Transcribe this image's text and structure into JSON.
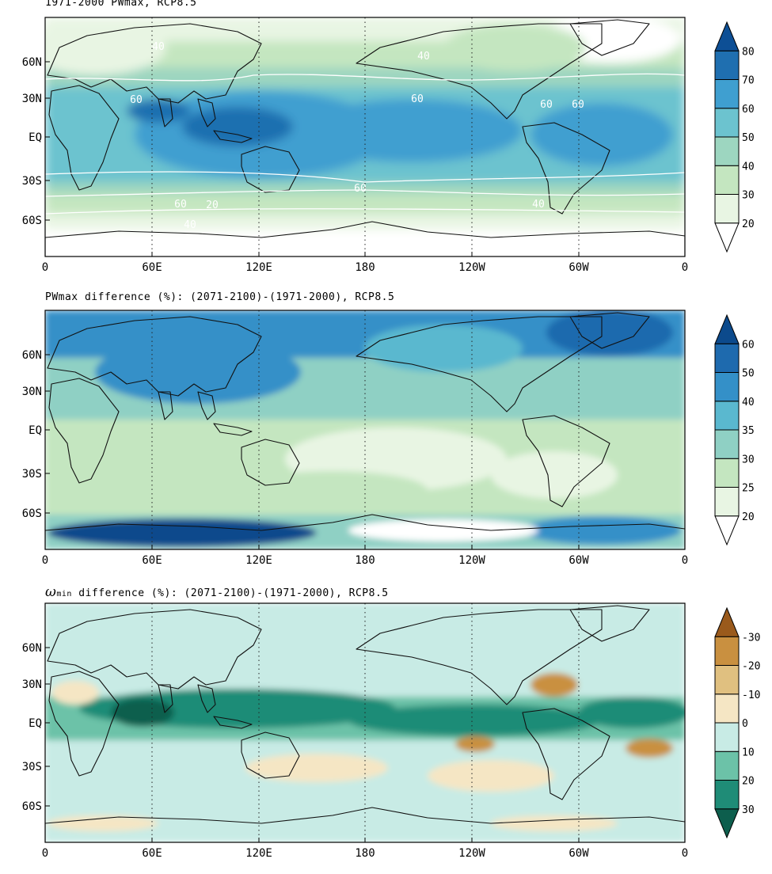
{
  "panels": [
    {
      "title": "1971-2000 PWmax, RCP8.5",
      "colorbar": {
        "levels": [
          "20",
          "30",
          "40",
          "50",
          "60",
          "70",
          "80"
        ],
        "colors": [
          "#ffffff",
          "#e8f5e3",
          "#c4e6c0",
          "#9dd6c0",
          "#6cc3cf",
          "#3f9fd0",
          "#1f6fb0",
          "#0d4f95"
        ]
      },
      "contour_labels": [
        "40",
        "40",
        "60",
        "60",
        "60",
        "60",
        "60",
        "60",
        "40",
        "40",
        "20"
      ]
    },
    {
      "title": "PWmax difference (%): (2071-2100)-(1971-2000), RCP8.5",
      "colorbar": {
        "levels": [
          "20",
          "25",
          "30",
          "35",
          "40",
          "50",
          "60"
        ],
        "colors": [
          "#ffffff",
          "#e8f5e3",
          "#c4e6c0",
          "#8fd0c4",
          "#5ab8cf",
          "#3490c8",
          "#1e6aae",
          "#0c4a8c"
        ]
      }
    },
    {
      "title_symbol": "ω",
      "title_sub": "min",
      "title": " difference (%): (2071-2100)-(1971-2000), RCP8.5",
      "colorbar": {
        "levels": [
          "30",
          "20",
          "10",
          "0",
          "-10",
          "-20",
          "-30"
        ],
        "colors": [
          "#0d5e4d",
          "#1f8c77",
          "#6cc2a8",
          "#c8ebe5",
          "#f5e6c4",
          "#e0c080",
          "#c99040",
          "#9a5a1c"
        ]
      }
    }
  ],
  "map_axes": {
    "x_ticks": [
      "0",
      "60E",
      "120E",
      "180",
      "120W",
      "60W",
      "0"
    ],
    "y_ticks": [
      "60N",
      "30N",
      "EQ",
      "30S",
      "60S"
    ]
  },
  "chart_data": [
    {
      "type": "heatmap",
      "title": "1971-2000 PWmax, RCP8.5",
      "x_ticks": [
        "0",
        "60E",
        "120E",
        "180",
        "120W",
        "60W",
        "0"
      ],
      "y_ticks": [
        "60N",
        "30N",
        "EQ",
        "30S",
        "60S"
      ],
      "colorbar_levels": [
        20,
        30,
        40,
        50,
        60,
        70,
        80
      ],
      "contour_labels": [
        40,
        40,
        60,
        60,
        60,
        60,
        60,
        60,
        40,
        40,
        20
      ],
      "grid": "dotted at 60E,120E,180,120W,60W"
    },
    {
      "type": "heatmap",
      "title": "PWmax difference (%): (2071-2100)-(1971-2000), RCP8.5",
      "x_ticks": [
        "0",
        "60E",
        "120E",
        "180",
        "120W",
        "60W",
        "0"
      ],
      "y_ticks": [
        "60N",
        "30N",
        "EQ",
        "30S",
        "60S"
      ],
      "colorbar_levels": [
        20,
        25,
        30,
        35,
        40,
        50,
        60
      ],
      "grid": "dotted at 60E,120E,180,120W,60W"
    },
    {
      "type": "heatmap",
      "title": "ωmin difference (%): (2071-2100)-(1971-2000), RCP8.5",
      "x_ticks": [
        "0",
        "60E",
        "120E",
        "180",
        "120W",
        "60W",
        "0"
      ],
      "y_ticks": [
        "60N",
        "30N",
        "EQ",
        "30S",
        "60S"
      ],
      "colorbar_levels": [
        30,
        20,
        10,
        0,
        -10,
        -20,
        -30
      ],
      "grid": "dotted at 60E,120E,180,120W,60W"
    }
  ]
}
